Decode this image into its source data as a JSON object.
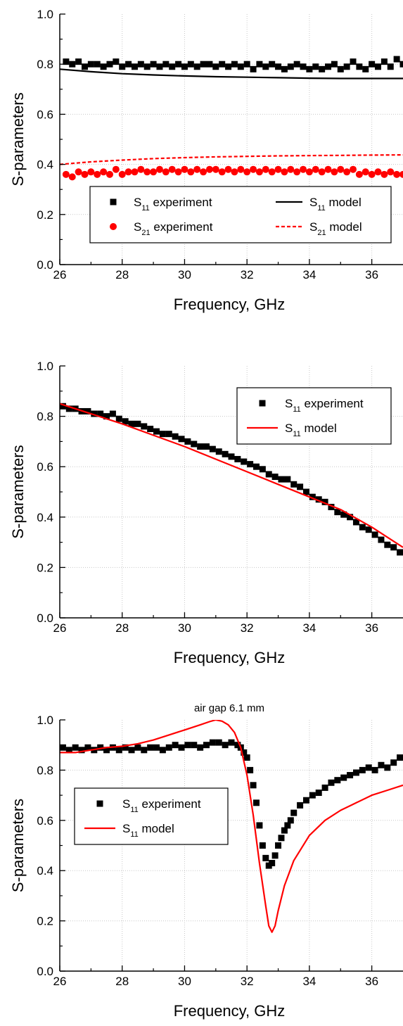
{
  "chart_data": [
    {
      "type": "scatter",
      "title": "",
      "xlabel": "Frequency, GHz",
      "ylabel": "S-parameters",
      "xlim": [
        26,
        37
      ],
      "ylim": [
        0.0,
        1.0
      ],
      "xticks": [
        "26",
        "28",
        "30",
        "32",
        "34",
        "36"
      ],
      "yticks": [
        "0.0",
        "0.2",
        "0.4",
        "0.6",
        "0.8",
        "1.0"
      ],
      "grid": true,
      "legend_position": "lower-center",
      "legend_columns": 2,
      "series": [
        {
          "name": "S11 experiment",
          "label_main": "S",
          "label_sub": "11",
          "label_tail": " experiment",
          "kind": "markers",
          "marker": "square",
          "color": "#000000",
          "x": [
            26.2,
            26.4,
            26.6,
            26.8,
            27.0,
            27.2,
            27.4,
            27.6,
            27.8,
            28.0,
            28.2,
            28.4,
            28.6,
            28.8,
            29.0,
            29.2,
            29.4,
            29.6,
            29.8,
            30.0,
            30.2,
            30.4,
            30.6,
            30.8,
            31.0,
            31.2,
            31.4,
            31.6,
            31.8,
            32.0,
            32.2,
            32.4,
            32.6,
            32.8,
            33.0,
            33.2,
            33.4,
            33.6,
            33.8,
            34.0,
            34.2,
            34.4,
            34.6,
            34.8,
            35.0,
            35.2,
            35.4,
            35.6,
            35.8,
            36.0,
            36.2,
            36.4,
            36.6,
            36.8,
            37.0
          ],
          "y": [
            0.81,
            0.8,
            0.81,
            0.79,
            0.8,
            0.8,
            0.79,
            0.8,
            0.81,
            0.79,
            0.8,
            0.79,
            0.8,
            0.79,
            0.8,
            0.79,
            0.8,
            0.79,
            0.8,
            0.79,
            0.8,
            0.79,
            0.8,
            0.8,
            0.79,
            0.8,
            0.79,
            0.8,
            0.79,
            0.8,
            0.78,
            0.8,
            0.79,
            0.8,
            0.79,
            0.78,
            0.79,
            0.8,
            0.79,
            0.78,
            0.79,
            0.78,
            0.79,
            0.8,
            0.78,
            0.79,
            0.81,
            0.79,
            0.78,
            0.8,
            0.79,
            0.81,
            0.79,
            0.82,
            0.8
          ]
        },
        {
          "name": "S21 experiment",
          "label_main": "S",
          "label_sub": "21",
          "label_tail": " experiment",
          "kind": "markers",
          "marker": "circle",
          "color": "#ff0000",
          "x": [
            26.2,
            26.4,
            26.6,
            26.8,
            27.0,
            27.2,
            27.4,
            27.6,
            27.8,
            28.0,
            28.2,
            28.4,
            28.6,
            28.8,
            29.0,
            29.2,
            29.4,
            29.6,
            29.8,
            30.0,
            30.2,
            30.4,
            30.6,
            30.8,
            31.0,
            31.2,
            31.4,
            31.6,
            31.8,
            32.0,
            32.2,
            32.4,
            32.6,
            32.8,
            33.0,
            33.2,
            33.4,
            33.6,
            33.8,
            34.0,
            34.2,
            34.4,
            34.6,
            34.8,
            35.0,
            35.2,
            35.4,
            35.6,
            35.8,
            36.0,
            36.2,
            36.4,
            36.6,
            36.8,
            37.0
          ],
          "y": [
            0.36,
            0.35,
            0.37,
            0.36,
            0.37,
            0.36,
            0.37,
            0.36,
            0.38,
            0.36,
            0.37,
            0.37,
            0.38,
            0.37,
            0.37,
            0.38,
            0.37,
            0.38,
            0.37,
            0.38,
            0.37,
            0.38,
            0.37,
            0.38,
            0.38,
            0.37,
            0.38,
            0.37,
            0.38,
            0.37,
            0.38,
            0.37,
            0.38,
            0.37,
            0.38,
            0.37,
            0.38,
            0.37,
            0.38,
            0.37,
            0.38,
            0.37,
            0.38,
            0.37,
            0.38,
            0.37,
            0.38,
            0.36,
            0.37,
            0.36,
            0.37,
            0.36,
            0.37,
            0.36,
            0.36
          ]
        },
        {
          "name": "S11 model",
          "label_main": "S",
          "label_sub": "11",
          "label_tail": " model",
          "kind": "line",
          "dash": "solid",
          "color": "#000000",
          "x": [
            26,
            27,
            28,
            29,
            30,
            31,
            32,
            33,
            34,
            35,
            36,
            37
          ],
          "y": [
            0.78,
            0.77,
            0.762,
            0.757,
            0.753,
            0.75,
            0.748,
            0.746,
            0.744,
            0.743,
            0.743,
            0.743
          ]
        },
        {
          "name": "S21 model",
          "label_main": "S",
          "label_sub": "21",
          "label_tail": " model",
          "kind": "line",
          "dash": "dashed",
          "color": "#ff0000",
          "x": [
            26,
            27,
            28,
            29,
            30,
            31,
            32,
            33,
            34,
            35,
            36,
            37
          ],
          "y": [
            0.4,
            0.41,
            0.417,
            0.423,
            0.427,
            0.43,
            0.432,
            0.434,
            0.435,
            0.436,
            0.437,
            0.438
          ]
        }
      ]
    },
    {
      "type": "scatter",
      "title": "",
      "xlabel": "Frequency, GHz",
      "ylabel": "S-parameters",
      "xlim": [
        26,
        37
      ],
      "ylim": [
        0.0,
        1.0
      ],
      "xticks": [
        "26",
        "28",
        "30",
        "32",
        "34",
        "36"
      ],
      "yticks": [
        "0.0",
        "0.2",
        "0.4",
        "0.6",
        "0.8",
        "1.0"
      ],
      "grid": true,
      "legend_position": "top-right",
      "legend_columns": 1,
      "series": [
        {
          "name": "S11 experiment",
          "label_main": "S",
          "label_sub": "11",
          "label_tail": " experiment",
          "kind": "markers",
          "marker": "square",
          "color": "#000000",
          "x": [
            26.1,
            26.3,
            26.5,
            26.7,
            26.9,
            27.1,
            27.3,
            27.5,
            27.7,
            27.9,
            28.1,
            28.3,
            28.5,
            28.7,
            28.9,
            29.1,
            29.3,
            29.5,
            29.7,
            29.9,
            30.1,
            30.3,
            30.5,
            30.7,
            30.9,
            31.1,
            31.3,
            31.5,
            31.7,
            31.9,
            32.1,
            32.3,
            32.5,
            32.7,
            32.9,
            33.1,
            33.3,
            33.5,
            33.7,
            33.9,
            34.1,
            34.3,
            34.5,
            34.7,
            34.9,
            35.1,
            35.3,
            35.5,
            35.7,
            35.9,
            36.1,
            36.3,
            36.5,
            36.7,
            36.9
          ],
          "y": [
            0.84,
            0.83,
            0.83,
            0.82,
            0.82,
            0.81,
            0.81,
            0.8,
            0.81,
            0.79,
            0.78,
            0.77,
            0.77,
            0.76,
            0.75,
            0.74,
            0.73,
            0.73,
            0.72,
            0.71,
            0.7,
            0.69,
            0.68,
            0.68,
            0.67,
            0.66,
            0.65,
            0.64,
            0.63,
            0.62,
            0.61,
            0.6,
            0.59,
            0.57,
            0.56,
            0.55,
            0.55,
            0.53,
            0.52,
            0.5,
            0.48,
            0.47,
            0.46,
            0.44,
            0.42,
            0.41,
            0.4,
            0.38,
            0.36,
            0.35,
            0.33,
            0.31,
            0.29,
            0.28,
            0.26
          ]
        },
        {
          "name": "S11 model",
          "label_main": "S",
          "label_sub": "11",
          "label_tail": " model",
          "kind": "line",
          "dash": "solid",
          "color": "#ff0000",
          "x": [
            26,
            27,
            28,
            29,
            30,
            31,
            32,
            33,
            34,
            35,
            36,
            37
          ],
          "y": [
            0.85,
            0.81,
            0.77,
            0.725,
            0.68,
            0.63,
            0.58,
            0.53,
            0.48,
            0.43,
            0.36,
            0.28
          ]
        }
      ]
    },
    {
      "type": "scatter",
      "title": "air gap 6.1 mm",
      "xlabel": "Frequency, GHz",
      "ylabel": "S-parameters",
      "xlim": [
        26,
        37
      ],
      "ylim": [
        0.0,
        1.0
      ],
      "xticks": [
        "26",
        "28",
        "30",
        "32",
        "34",
        "36"
      ],
      "yticks": [
        "0.0",
        "0.2",
        "0.4",
        "0.6",
        "0.8",
        "1.0"
      ],
      "grid": true,
      "legend_position": "middle-left",
      "legend_columns": 1,
      "series": [
        {
          "name": "S11 experiment",
          "label_main": "S",
          "label_sub": "11",
          "label_tail": " experiment",
          "kind": "markers",
          "marker": "square",
          "color": "#000000",
          "x": [
            26.1,
            26.3,
            26.5,
            26.7,
            26.9,
            27.1,
            27.3,
            27.5,
            27.7,
            27.9,
            28.1,
            28.3,
            28.5,
            28.7,
            28.9,
            29.1,
            29.3,
            29.5,
            29.7,
            29.9,
            30.1,
            30.3,
            30.5,
            30.7,
            30.9,
            31.1,
            31.3,
            31.5,
            31.7,
            31.8,
            31.9,
            32.0,
            32.1,
            32.2,
            32.3,
            32.4,
            32.5,
            32.6,
            32.7,
            32.8,
            32.9,
            33.0,
            33.1,
            33.2,
            33.3,
            33.4,
            33.5,
            33.7,
            33.9,
            34.1,
            34.3,
            34.5,
            34.7,
            34.9,
            35.1,
            35.3,
            35.5,
            35.7,
            35.9,
            36.1,
            36.3,
            36.5,
            36.7,
            36.9
          ],
          "y": [
            0.89,
            0.88,
            0.89,
            0.88,
            0.89,
            0.88,
            0.89,
            0.88,
            0.89,
            0.88,
            0.89,
            0.88,
            0.89,
            0.88,
            0.89,
            0.89,
            0.88,
            0.89,
            0.9,
            0.89,
            0.9,
            0.9,
            0.89,
            0.9,
            0.91,
            0.91,
            0.9,
            0.91,
            0.9,
            0.89,
            0.87,
            0.85,
            0.8,
            0.74,
            0.67,
            0.58,
            0.5,
            0.45,
            0.42,
            0.43,
            0.46,
            0.5,
            0.53,
            0.56,
            0.58,
            0.6,
            0.63,
            0.66,
            0.68,
            0.7,
            0.71,
            0.73,
            0.75,
            0.76,
            0.77,
            0.78,
            0.79,
            0.8,
            0.81,
            0.8,
            0.82,
            0.81,
            0.83,
            0.85
          ]
        },
        {
          "name": "S11 model",
          "label_main": "S",
          "label_sub": "11",
          "label_tail": " model",
          "kind": "line",
          "dash": "solid",
          "color": "#ff0000",
          "x": [
            26,
            26.5,
            27,
            27.5,
            28,
            28.5,
            29,
            29.5,
            30,
            30.5,
            30.8,
            31.0,
            31.2,
            31.4,
            31.6,
            31.8,
            32.0,
            32.2,
            32.4,
            32.6,
            32.7,
            32.8,
            32.9,
            33.0,
            33.2,
            33.5,
            34,
            34.5,
            35,
            35.5,
            36,
            36.5,
            37
          ],
          "y": [
            0.87,
            0.87,
            0.88,
            0.89,
            0.895,
            0.905,
            0.92,
            0.94,
            0.96,
            0.98,
            0.993,
            1.0,
            0.995,
            0.98,
            0.95,
            0.89,
            0.78,
            0.62,
            0.43,
            0.26,
            0.18,
            0.155,
            0.18,
            0.24,
            0.34,
            0.44,
            0.54,
            0.6,
            0.64,
            0.67,
            0.7,
            0.72,
            0.74
          ]
        }
      ]
    }
  ]
}
